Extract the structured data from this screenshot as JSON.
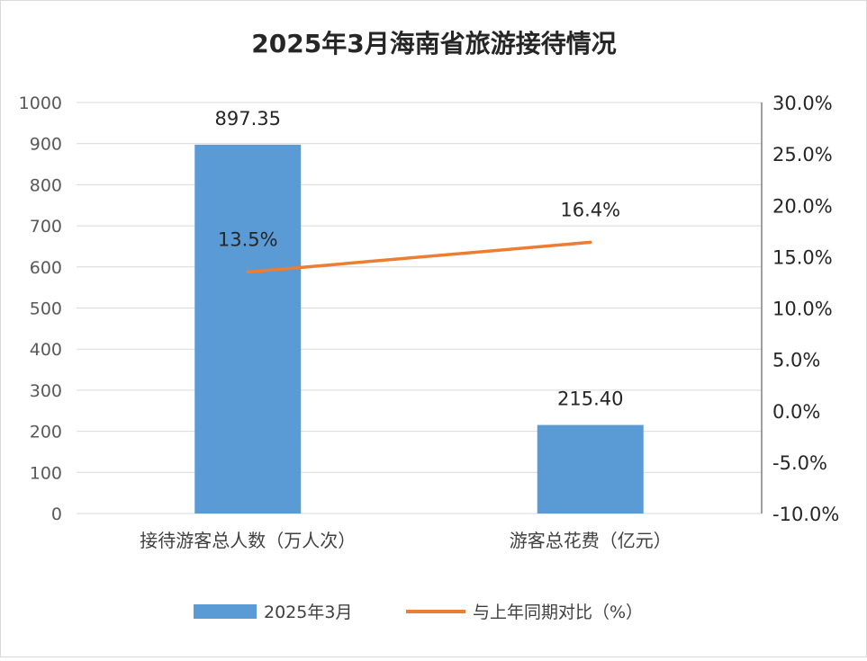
{
  "chart_data": {
    "type": "bar",
    "title": "2025年3月海南省旅游接待情况",
    "categories": [
      "接待游客总人数（万人次）",
      "游客总花费（亿元）"
    ],
    "series": [
      {
        "name": "2025年3月",
        "type": "bar",
        "axis": "left",
        "values": [
          897.35,
          215.4
        ],
        "data_labels": [
          "897.35",
          "215.40"
        ],
        "color": "#5b9bd5"
      },
      {
        "name": "与上年同期对比（%）",
        "type": "line",
        "axis": "right",
        "values": [
          13.5,
          16.4
        ],
        "data_labels": [
          "13.5%",
          "16.4%"
        ],
        "color": "#ed7d31"
      }
    ],
    "y_left": {
      "ylim": [
        0,
        1000
      ],
      "ticks": [
        0,
        100,
        200,
        300,
        400,
        500,
        600,
        700,
        800,
        900,
        1000
      ],
      "tick_labels": [
        "0",
        "100",
        "200",
        "300",
        "400",
        "500",
        "600",
        "700",
        "800",
        "900",
        "1000"
      ]
    },
    "y_right": {
      "ylim": [
        -10,
        30
      ],
      "ticks": [
        -10,
        -5,
        0,
        5,
        10,
        15,
        20,
        25,
        30
      ],
      "tick_labels": [
        "-10.0%",
        "-5.0%",
        "0.0%",
        "5.0%",
        "10.0%",
        "15.0%",
        "20.0%",
        "25.0%",
        "30.0%"
      ]
    },
    "grid": true,
    "legend_position": "bottom"
  }
}
